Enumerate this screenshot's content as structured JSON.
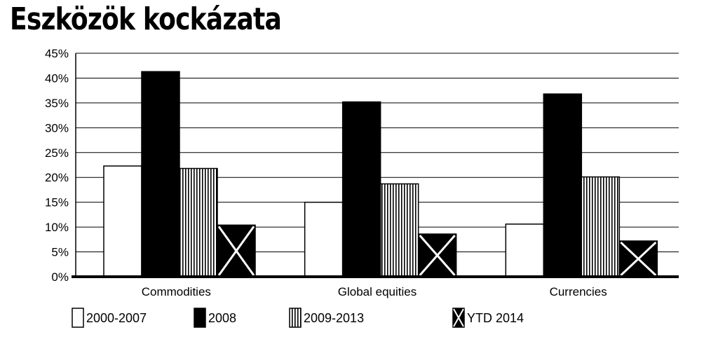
{
  "chart_data": {
    "type": "bar",
    "title": "Eszközök kockázata",
    "categories": [
      "Commodities",
      "Global equities",
      "Currencies"
    ],
    "series": [
      {
        "name": "2000-2007",
        "values": [
          22.3,
          15.0,
          10.6
        ],
        "pattern": "white"
      },
      {
        "name": "2008",
        "values": [
          41.3,
          35.2,
          36.8
        ],
        "pattern": "black"
      },
      {
        "name": "2009-2013",
        "values": [
          21.8,
          18.7,
          20.1
        ],
        "pattern": "vertical-stripes"
      },
      {
        "name": "YTD 2014",
        "values": [
          10.4,
          8.6,
          7.2
        ],
        "pattern": "black-with-x"
      }
    ],
    "ylim": [
      0,
      45
    ],
    "yticks": [
      0,
      5,
      10,
      15,
      20,
      25,
      30,
      35,
      40,
      45
    ],
    "ytick_labels": [
      "0%",
      "5%",
      "10%",
      "15%",
      "20%",
      "25%",
      "30%",
      "35%",
      "40%",
      "45%"
    ],
    "xlabel": "",
    "ylabel": "",
    "grid": true,
    "legend_position": "bottom"
  }
}
